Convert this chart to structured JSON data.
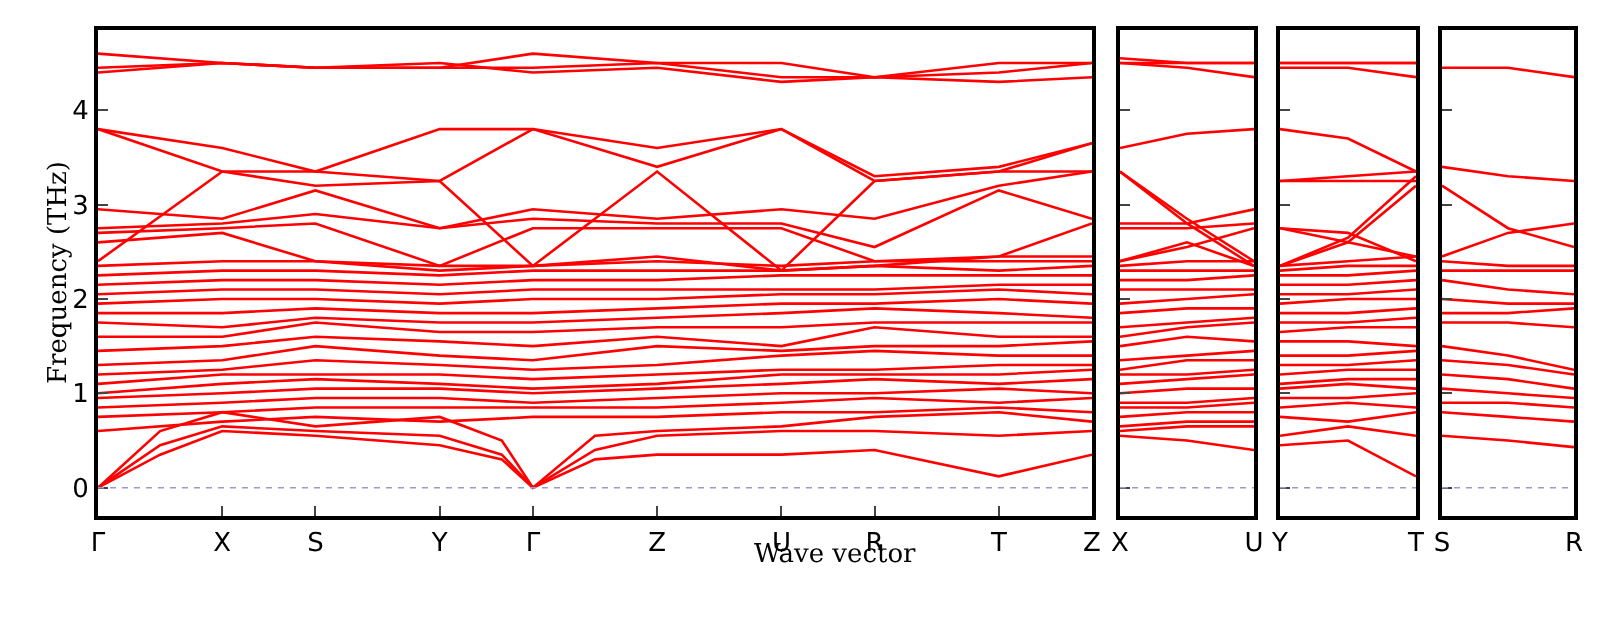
{
  "chart_data": [
    {
      "type": "line",
      "ylabel": "Frequency (THz)",
      "xlabel": "Wave vector",
      "color": "#ff0000",
      "line_style": "solid",
      "marker": "none",
      "categories": [
        "Γ",
        null,
        null,
        null,
        "X",
        null,
        null,
        "S",
        null,
        null,
        null,
        "Y",
        null,
        null,
        "Γ",
        null,
        null,
        null,
        "Z",
        null,
        null,
        null,
        "U",
        null,
        null,
        "R",
        null,
        null,
        null,
        "T",
        null,
        null,
        "Z"
      ],
      "ylim": [
        -0.3,
        4.85
      ],
      "yticks": [
        0,
        1,
        2,
        3,
        4
      ],
      "ref_lines": [
        {
          "axis": "y",
          "value": 0,
          "color": "#9999cc",
          "line_style": "dotted"
        }
      ],
      "series": [
        {
          "values": [
            0,
            null,
            0.35,
            null,
            0.6,
            null,
            null,
            0.55,
            null,
            null,
            null,
            0.45,
            null,
            0.3,
            0,
            null,
            0.3,
            null,
            0.35,
            null,
            null,
            null,
            0.35,
            null,
            null,
            0.4,
            null,
            null,
            null,
            0.12,
            null,
            null,
            0.35
          ]
        },
        {
          "values": [
            0,
            null,
            0.45,
            null,
            0.65,
            null,
            null,
            0.6,
            null,
            null,
            null,
            0.55,
            null,
            0.35,
            0,
            null,
            0.4,
            null,
            0.55,
            null,
            null,
            null,
            0.6,
            null,
            null,
            0.6,
            null,
            null,
            null,
            0.55,
            null,
            null,
            0.6
          ]
        },
        {
          "values": [
            0,
            null,
            0.6,
            null,
            0.8,
            null,
            null,
            0.65,
            null,
            null,
            null,
            0.75,
            null,
            0.5,
            0,
            null,
            0.55,
            null,
            0.6,
            null,
            null,
            null,
            0.65,
            null,
            null,
            0.75,
            null,
            null,
            null,
            0.8,
            null,
            null,
            0.7
          ]
        },
        {
          "values": [
            0.6,
            null,
            null,
            null,
            0.7,
            null,
            null,
            0.75,
            null,
            null,
            null,
            0.7,
            null,
            null,
            0.75,
            null,
            null,
            null,
            0.75,
            null,
            null,
            null,
            0.8,
            null,
            null,
            0.8,
            null,
            null,
            null,
            0.85,
            null,
            null,
            0.8
          ]
        },
        {
          "values": [
            0.75,
            null,
            null,
            null,
            0.8,
            null,
            null,
            0.85,
            null,
            null,
            null,
            0.85,
            null,
            null,
            0.85,
            null,
            null,
            null,
            0.85,
            null,
            null,
            null,
            0.9,
            null,
            null,
            0.95,
            null,
            null,
            null,
            0.9,
            null,
            null,
            0.95
          ]
        },
        {
          "values": [
            0.85,
            null,
            null,
            null,
            0.9,
            null,
            null,
            0.95,
            null,
            null,
            null,
            0.95,
            null,
            null,
            0.9,
            null,
            null,
            null,
            0.95,
            null,
            null,
            null,
            1.0,
            null,
            null,
            1.0,
            null,
            null,
            null,
            1.05,
            null,
            null,
            1.0
          ]
        },
        {
          "values": [
            0.95,
            null,
            null,
            null,
            1.0,
            null,
            null,
            1.05,
            null,
            null,
            null,
            1.05,
            null,
            null,
            1.0,
            null,
            null,
            null,
            1.05,
            null,
            null,
            null,
            1.1,
            null,
            null,
            1.15,
            null,
            null,
            null,
            1.1,
            null,
            null,
            1.15
          ]
        },
        {
          "values": [
            1.0,
            null,
            null,
            null,
            1.1,
            null,
            null,
            1.15,
            null,
            null,
            null,
            1.1,
            null,
            null,
            1.05,
            null,
            null,
            null,
            1.1,
            null,
            null,
            null,
            1.2,
            null,
            null,
            1.2,
            null,
            null,
            null,
            1.2,
            null,
            null,
            1.25
          ]
        },
        {
          "values": [
            1.1,
            null,
            null,
            null,
            1.2,
            null,
            null,
            1.2,
            null,
            null,
            null,
            1.2,
            null,
            null,
            1.15,
            null,
            null,
            null,
            1.2,
            null,
            null,
            null,
            1.25,
            null,
            null,
            1.25,
            null,
            null,
            null,
            1.3,
            null,
            null,
            1.3
          ]
        },
        {
          "values": [
            1.2,
            null,
            null,
            null,
            1.25,
            null,
            null,
            1.35,
            null,
            null,
            null,
            1.3,
            null,
            null,
            1.25,
            null,
            null,
            null,
            1.3,
            null,
            null,
            null,
            1.4,
            null,
            null,
            1.45,
            null,
            null,
            null,
            1.4,
            null,
            null,
            1.4
          ]
        },
        {
          "values": [
            1.3,
            null,
            null,
            null,
            1.35,
            null,
            null,
            1.5,
            null,
            null,
            null,
            1.4,
            null,
            null,
            1.35,
            null,
            null,
            null,
            1.5,
            null,
            null,
            null,
            1.45,
            null,
            null,
            1.5,
            null,
            null,
            null,
            1.5,
            null,
            null,
            1.55
          ]
        },
        {
          "values": [
            1.45,
            null,
            null,
            null,
            1.5,
            null,
            null,
            1.6,
            null,
            null,
            null,
            1.55,
            null,
            null,
            1.5,
            null,
            null,
            null,
            1.6,
            null,
            null,
            null,
            1.5,
            null,
            null,
            1.7,
            null,
            null,
            null,
            1.6,
            null,
            null,
            1.6
          ]
        },
        {
          "values": [
            1.6,
            null,
            null,
            null,
            1.6,
            null,
            null,
            1.75,
            null,
            null,
            null,
            1.65,
            null,
            null,
            1.65,
            null,
            null,
            null,
            1.7,
            null,
            null,
            null,
            1.7,
            null,
            null,
            1.75,
            null,
            null,
            null,
            1.75,
            null,
            null,
            1.75
          ]
        },
        {
          "values": [
            1.75,
            null,
            null,
            null,
            1.7,
            null,
            null,
            1.8,
            null,
            null,
            null,
            1.75,
            null,
            null,
            1.75,
            null,
            null,
            null,
            1.8,
            null,
            null,
            null,
            1.85,
            null,
            null,
            1.9,
            null,
            null,
            null,
            1.85,
            null,
            null,
            1.8
          ]
        },
        {
          "values": [
            1.85,
            null,
            null,
            null,
            1.85,
            null,
            null,
            1.9,
            null,
            null,
            null,
            1.85,
            null,
            null,
            1.85,
            null,
            null,
            null,
            1.9,
            null,
            null,
            null,
            1.95,
            null,
            null,
            1.95,
            null,
            null,
            null,
            2.0,
            null,
            null,
            1.95
          ]
        },
        {
          "values": [
            1.95,
            null,
            null,
            null,
            2.0,
            null,
            null,
            2.0,
            null,
            null,
            null,
            1.95,
            null,
            null,
            2.0,
            null,
            null,
            null,
            2.0,
            null,
            null,
            null,
            2.05,
            null,
            null,
            2.05,
            null,
            null,
            null,
            2.1,
            null,
            null,
            2.05
          ]
        },
        {
          "values": [
            2.05,
            null,
            null,
            null,
            2.1,
            null,
            null,
            2.1,
            null,
            null,
            null,
            2.05,
            null,
            null,
            2.1,
            null,
            null,
            null,
            2.1,
            null,
            null,
            null,
            2.1,
            null,
            null,
            2.1,
            null,
            null,
            null,
            2.15,
            null,
            null,
            2.15
          ]
        },
        {
          "values": [
            2.15,
            null,
            null,
            null,
            2.2,
            null,
            null,
            2.2,
            null,
            null,
            null,
            2.15,
            null,
            null,
            2.2,
            null,
            null,
            null,
            2.2,
            null,
            null,
            null,
            2.25,
            null,
            null,
            2.25,
            null,
            null,
            null,
            2.25,
            null,
            null,
            2.25
          ]
        },
        {
          "values": [
            2.25,
            null,
            null,
            null,
            2.3,
            null,
            null,
            2.3,
            null,
            null,
            null,
            2.25,
            null,
            null,
            2.3,
            null,
            null,
            null,
            2.3,
            null,
            null,
            null,
            2.3,
            null,
            null,
            2.35,
            null,
            null,
            null,
            2.3,
            null,
            null,
            2.35
          ]
        },
        {
          "values": [
            2.35,
            null,
            null,
            null,
            2.4,
            null,
            null,
            2.4,
            null,
            null,
            null,
            2.35,
            null,
            null,
            2.35,
            null,
            null,
            null,
            2.4,
            null,
            null,
            null,
            2.35,
            null,
            null,
            2.4,
            null,
            null,
            null,
            2.4,
            null,
            null,
            2.4
          ]
        },
        {
          "values": [
            2.6,
            null,
            null,
            null,
            2.7,
            null,
            null,
            2.4,
            null,
            null,
            null,
            2.3,
            null,
            null,
            2.35,
            null,
            null,
            null,
            2.45,
            null,
            null,
            null,
            2.3,
            null,
            null,
            2.35,
            null,
            null,
            null,
            2.45,
            null,
            null,
            2.45
          ]
        },
        {
          "values": [
            2.7,
            null,
            null,
            null,
            2.75,
            null,
            null,
            2.8,
            null,
            null,
            null,
            2.35,
            null,
            null,
            2.75,
            null,
            null,
            null,
            2.75,
            null,
            null,
            null,
            2.75,
            null,
            null,
            2.4,
            null,
            null,
            null,
            2.45,
            null,
            null,
            2.8
          ]
        },
        {
          "values": [
            2.75,
            null,
            null,
            null,
            2.8,
            null,
            null,
            2.9,
            null,
            null,
            null,
            2.75,
            null,
            null,
            2.85,
            null,
            null,
            null,
            2.8,
            null,
            null,
            null,
            2.8,
            null,
            null,
            2.55,
            null,
            null,
            null,
            3.15,
            null,
            null,
            2.85
          ]
        },
        {
          "values": [
            2.95,
            null,
            null,
            null,
            2.85,
            null,
            null,
            3.15,
            null,
            null,
            null,
            2.75,
            null,
            null,
            2.95,
            null,
            null,
            null,
            2.85,
            null,
            null,
            null,
            2.95,
            null,
            null,
            2.85,
            null,
            null,
            null,
            3.2,
            null,
            null,
            3.35
          ]
        },
        {
          "values": [
            2.4,
            null,
            null,
            null,
            3.35,
            null,
            null,
            3.2,
            null,
            null,
            null,
            3.25,
            null,
            null,
            2.35,
            null,
            null,
            null,
            3.35,
            null,
            null,
            null,
            2.3,
            null,
            null,
            3.25,
            null,
            null,
            null,
            3.35,
            null,
            null,
            3.35
          ]
        },
        {
          "values": [
            3.8,
            null,
            null,
            null,
            3.35,
            null,
            null,
            3.35,
            null,
            null,
            null,
            3.25,
            null,
            null,
            3.8,
            null,
            null,
            null,
            3.4,
            null,
            null,
            null,
            3.8,
            null,
            null,
            3.25,
            null,
            null,
            null,
            3.35,
            null,
            null,
            3.65
          ]
        },
        {
          "values": [
            3.8,
            null,
            null,
            null,
            3.6,
            null,
            null,
            3.35,
            null,
            null,
            null,
            3.8,
            null,
            null,
            3.8,
            null,
            null,
            null,
            3.6,
            null,
            null,
            null,
            3.8,
            null,
            null,
            3.3,
            null,
            null,
            null,
            3.4,
            null,
            null,
            3.65
          ]
        },
        {
          "values": [
            4.4,
            null,
            null,
            null,
            4.5,
            null,
            null,
            4.45,
            null,
            null,
            null,
            4.5,
            null,
            null,
            4.4,
            null,
            null,
            null,
            4.45,
            null,
            null,
            null,
            4.3,
            null,
            null,
            4.35,
            null,
            null,
            null,
            4.3,
            null,
            null,
            4.35
          ]
        },
        {
          "values": [
            4.45,
            null,
            null,
            null,
            4.5,
            null,
            null,
            4.45,
            null,
            null,
            null,
            4.45,
            null,
            null,
            4.45,
            null,
            null,
            null,
            4.5,
            null,
            null,
            null,
            4.35,
            null,
            null,
            4.35,
            null,
            null,
            null,
            4.4,
            null,
            null,
            4.5
          ]
        },
        {
          "values": [
            4.6,
            null,
            null,
            null,
            4.5,
            null,
            null,
            4.45,
            null,
            null,
            null,
            4.45,
            null,
            null,
            4.6,
            null,
            null,
            null,
            4.5,
            null,
            null,
            null,
            4.5,
            null,
            null,
            4.35,
            null,
            null,
            null,
            4.5,
            null,
            null,
            4.5
          ]
        }
      ]
    },
    {
      "type": "line",
      "color": "#ff0000",
      "line_style": "solid",
      "marker": "none",
      "tick_labels": "x",
      "categories": [
        "X",
        null,
        "U"
      ],
      "ylim": [
        -0.3,
        4.85
      ],
      "yticks": [
        0,
        1,
        2,
        3,
        4
      ],
      "ref_lines": [
        {
          "axis": "y",
          "value": 0,
          "color": "#9999cc",
          "line_style": "dotted"
        }
      ],
      "series": [
        {
          "values": [
            0.55,
            0.5,
            0.4
          ]
        },
        {
          "values": [
            0.6,
            0.65,
            0.65
          ]
        },
        {
          "values": [
            0.65,
            0.7,
            0.7
          ]
        },
        {
          "values": [
            0.75,
            0.8,
            0.8
          ]
        },
        {
          "values": [
            0.85,
            0.85,
            0.9
          ]
        },
        {
          "values": [
            0.9,
            0.9,
            0.95
          ]
        },
        {
          "values": [
            1.0,
            1.05,
            1.05
          ]
        },
        {
          "values": [
            1.1,
            1.15,
            1.2
          ]
        },
        {
          "values": [
            1.2,
            1.2,
            1.25
          ]
        },
        {
          "values": [
            1.25,
            1.35,
            1.35
          ]
        },
        {
          "values": [
            1.35,
            1.4,
            1.45
          ]
        },
        {
          "values": [
            1.5,
            1.6,
            1.55
          ]
        },
        {
          "values": [
            1.6,
            1.7,
            1.75
          ]
        },
        {
          "values": [
            1.7,
            1.75,
            1.8
          ]
        },
        {
          "values": [
            1.85,
            1.9,
            1.9
          ]
        },
        {
          "values": [
            1.95,
            2.0,
            2.05
          ]
        },
        {
          "values": [
            2.1,
            2.1,
            2.1
          ]
        },
        {
          "values": [
            2.2,
            2.2,
            2.25
          ]
        },
        {
          "values": [
            2.3,
            2.3,
            2.3
          ]
        },
        {
          "values": [
            2.35,
            2.4,
            2.4
          ]
        },
        {
          "values": [
            2.4,
            2.55,
            2.75
          ]
        },
        {
          "values": [
            2.75,
            2.75,
            2.8
          ]
        },
        {
          "values": [
            2.8,
            2.8,
            2.95
          ]
        },
        {
          "values": [
            2.4,
            2.6,
            2.35
          ]
        },
        {
          "values": [
            3.35,
            2.8,
            2.35
          ]
        },
        {
          "values": [
            3.35,
            2.85,
            2.4
          ]
        },
        {
          "values": [
            3.6,
            3.75,
            3.8
          ]
        },
        {
          "values": [
            4.5,
            4.45,
            4.35
          ]
        },
        {
          "values": [
            4.5,
            4.5,
            4.5
          ]
        },
        {
          "values": [
            4.55,
            4.5,
            4.5
          ]
        }
      ]
    },
    {
      "type": "line",
      "color": "#ff0000",
      "line_style": "solid",
      "marker": "none",
      "tick_labels": "x",
      "categories": [
        "Y",
        null,
        "T"
      ],
      "ylim": [
        -0.3,
        4.85
      ],
      "yticks": [
        0,
        1,
        2,
        3,
        4
      ],
      "ref_lines": [
        {
          "axis": "y",
          "value": 0,
          "color": "#9999cc",
          "line_style": "dotted"
        }
      ],
      "series": [
        {
          "values": [
            0.45,
            0.5,
            0.12
          ]
        },
        {
          "values": [
            0.55,
            0.65,
            0.55
          ]
        },
        {
          "values": [
            0.75,
            0.7,
            0.8
          ]
        },
        {
          "values": [
            0.85,
            0.9,
            0.85
          ]
        },
        {
          "values": [
            0.95,
            0.95,
            1.0
          ]
        },
        {
          "values": [
            1.05,
            1.1,
            1.05
          ]
        },
        {
          "values": [
            1.1,
            1.15,
            1.15
          ]
        },
        {
          "values": [
            1.2,
            1.25,
            1.25
          ]
        },
        {
          "values": [
            1.3,
            1.3,
            1.35
          ]
        },
        {
          "values": [
            1.4,
            1.4,
            1.45
          ]
        },
        {
          "values": [
            1.55,
            1.55,
            1.5
          ]
        },
        {
          "values": [
            1.65,
            1.7,
            1.7
          ]
        },
        {
          "values": [
            1.75,
            1.75,
            1.8
          ]
        },
        {
          "values": [
            1.85,
            1.85,
            1.9
          ]
        },
        {
          "values": [
            1.95,
            2.0,
            2.0
          ]
        },
        {
          "values": [
            2.05,
            2.05,
            2.1
          ]
        },
        {
          "values": [
            2.15,
            2.15,
            2.2
          ]
        },
        {
          "values": [
            2.25,
            2.25,
            2.3
          ]
        },
        {
          "values": [
            2.3,
            2.35,
            2.35
          ]
        },
        {
          "values": [
            2.35,
            2.4,
            2.45
          ]
        },
        {
          "values": [
            2.35,
            2.6,
            3.2
          ]
        },
        {
          "values": [
            2.35,
            2.65,
            3.3
          ]
        },
        {
          "values": [
            2.75,
            2.7,
            2.4
          ]
        },
        {
          "values": [
            2.75,
            2.6,
            2.45
          ]
        },
        {
          "values": [
            3.25,
            3.25,
            3.25
          ]
        },
        {
          "values": [
            3.25,
            3.3,
            3.35
          ]
        },
        {
          "values": [
            3.8,
            3.7,
            3.35
          ]
        },
        {
          "values": [
            4.45,
            4.45,
            4.35
          ]
        },
        {
          "values": [
            4.5,
            4.5,
            4.5
          ]
        },
        {
          "values": [
            4.5,
            4.5,
            4.5
          ]
        }
      ]
    },
    {
      "type": "line",
      "color": "#ff0000",
      "line_style": "solid",
      "marker": "none",
      "tick_labels": "x",
      "categories": [
        "S",
        null,
        "R"
      ],
      "ylim": [
        -0.3,
        4.85
      ],
      "yticks": [
        0,
        1,
        2,
        3,
        4
      ],
      "ref_lines": [
        {
          "axis": "y",
          "value": 0,
          "color": "#9999cc",
          "line_style": "dotted"
        }
      ],
      "series": [
        {
          "values": [
            0.55,
            0.5,
            0.43
          ]
        },
        {
          "values": [
            0.8,
            0.75,
            0.7
          ]
        },
        {
          "values": [
            0.9,
            0.9,
            0.85
          ]
        },
        {
          "values": [
            1.05,
            1.0,
            0.95
          ]
        },
        {
          "values": [
            1.2,
            1.15,
            1.05
          ]
        },
        {
          "values": [
            1.35,
            1.3,
            1.2
          ]
        },
        {
          "values": [
            1.5,
            1.4,
            1.25
          ]
        },
        {
          "values": [
            1.75,
            1.75,
            1.7
          ]
        },
        {
          "values": [
            1.85,
            1.85,
            1.9
          ]
        },
        {
          "values": [
            2.0,
            1.95,
            1.95
          ]
        },
        {
          "values": [
            2.2,
            2.1,
            2.05
          ]
        },
        {
          "values": [
            2.3,
            2.3,
            2.3
          ]
        },
        {
          "values": [
            2.4,
            2.35,
            2.35
          ]
        },
        {
          "values": [
            2.45,
            2.7,
            2.8
          ]
        },
        {
          "values": [
            3.2,
            2.75,
            2.55
          ]
        },
        {
          "values": [
            3.4,
            3.3,
            3.25
          ]
        },
        {
          "values": [
            4.45,
            4.45,
            4.35
          ]
        }
      ]
    }
  ]
}
